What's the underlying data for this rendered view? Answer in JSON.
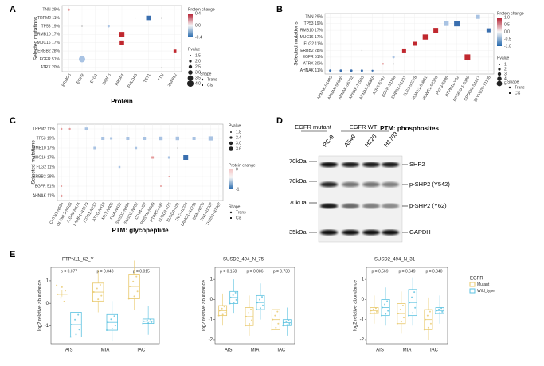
{
  "panels": {
    "A": {
      "letter": "A",
      "ylabel": "Selected mutations",
      "xlabel": "Protein",
      "rows": [
        "TNN 29%",
        "TRPM2 11%",
        "TP53 19%",
        "RMB10 17%",
        "MUC16 17%",
        "ERBB2 28%",
        "EGFR 51%",
        "ATRX 20%"
      ],
      "columns": [
        "ERMG3",
        "EGFR",
        "ETG1",
        "FABP3",
        "PRDF4",
        "PHLDA3",
        "TET1",
        "TTN",
        "ZNF692"
      ],
      "legend": {
        "color_title": "Protein change",
        "color_ticks": [
          "0.4",
          "0.0",
          "-0.4"
        ],
        "pvalue_title": "Pvalue",
        "pvalue_ticks": [
          "1.5",
          "2.0",
          "2.5",
          "3.0",
          "3.5",
          "4.0"
        ],
        "shape_title": "Shape",
        "shapes": [
          "Trans",
          "Cis"
        ]
      }
    },
    "B": {
      "letter": "B",
      "ylabel": "Selected mutations",
      "xlabel": "PTM: phosphosites",
      "rows": [
        "TNN 29%",
        "TP53 19%",
        "RMB10 17%",
        "MUC16 17%",
        "FLG2 11%",
        "ERBB2 28%",
        "EGFR 51%",
        "ATRX 20%",
        "AHNAK 11%"
      ],
      "columns": [
        "AHNAK-S1483",
        "AHNAK-S5580",
        "AHNAK-S5752",
        "AHNAK-T2933",
        "AHNAK-S5816",
        "ATRX-S797",
        "EGFR-S1166",
        "ERBB2-S1107",
        "FLG2-S2278",
        "HUWE1-S3861",
        "HUWE1-S2366",
        "PKP3-S285",
        "PTPN11-Y62",
        "RPS6KA1-S380",
        "SPTAN1-S1217",
        "ZFYVE26-T1105"
      ],
      "legend": {
        "color_title": "Protein change",
        "color_ticks": [
          "1.0",
          "0.5",
          "0.0",
          "-0.5",
          "-1.0"
        ],
        "pvalue_title": "Pvalue",
        "pvalue_ticks": [
          "1",
          "2",
          "3",
          "4",
          "5"
        ],
        "shape_title": "Shape",
        "shapes": [
          "Trans",
          "Cis"
        ]
      }
    },
    "C": {
      "letter": "C",
      "ylabel": "Selected mutations",
      "xlabel": "PTM: glycopeptide",
      "rows": [
        "TRPM2 11%",
        "TP53 19%",
        "RMB10 17%",
        "MUC16 17%",
        "FLG2 11%",
        "ERBB2 28%",
        "EGFR 51%",
        "AHNAK 11%"
      ],
      "columns": [
        "CNTN1-N594",
        "OLFML3-N333",
        "ITGAV-N874",
        "LAMB1-N1279",
        "ITGB1-N212",
        "AT1G-N418",
        "MET-N405",
        "FGA-N412",
        "SUSD2-N494",
        "SUSD2-N402",
        "CD44-N57",
        "POSTN-N599",
        "PTPRF-N95",
        "SUSD2-N75",
        "SUSD2-N31",
        "TNC-N1034",
        "LAMC1-N1223",
        "BGN-N270",
        "FN1-N1007",
        "THBS1-N1067"
      ],
      "legend": {
        "pvalue_title": "Pvalue",
        "pvalue_ticks": [
          "1.8",
          "2.4",
          "3.0",
          "3.6"
        ],
        "color_title": "Protein change",
        "color_ticks": [
          "0",
          "-1"
        ],
        "shape_title": "Shape",
        "shapes": [
          "Trans",
          "Cis"
        ]
      }
    },
    "D": {
      "letter": "D",
      "groups": [
        "EGFR mutant",
        "EGFR WT"
      ],
      "lanes": [
        "PC-9",
        "A549",
        "H226",
        "H1703"
      ],
      "markers": [
        "70kDa",
        "70kDa",
        "70kDa",
        "35kDa"
      ],
      "bands": [
        "SHP2",
        "p-SHP2 (Y542)",
        "p-SHP2 (Y62)",
        "GAPDH"
      ]
    },
    "E": {
      "letter": "E",
      "ylabel": "log2 relative abundance",
      "categories": [
        "AIS",
        "MIA",
        "IAC"
      ],
      "plots": [
        {
          "title": "PTPN11_62_Y",
          "pvalues": [
            "p = 0.077",
            "p = 0.043",
            "p = 0.015"
          ],
          "yticks": [
            "1",
            "0",
            "-1"
          ]
        },
        {
          "title": "SUSD2_494_N_75",
          "pvalues": [
            "p = 0.158",
            "p = 0.086",
            "p = 0.733"
          ],
          "yticks": [
            "1",
            "0",
            "-1",
            "-2"
          ]
        },
        {
          "title": "SUSD2_494_N_31",
          "pvalues": [
            "p = 0.569",
            "p = 0.649",
            "p = 0.340"
          ],
          "yticks": [
            "1",
            "0",
            "-1",
            "-2"
          ]
        }
      ],
      "legend": {
        "title": "EGFR",
        "items": [
          "Mutant",
          "Wild_type"
        ]
      }
    }
  }
}
